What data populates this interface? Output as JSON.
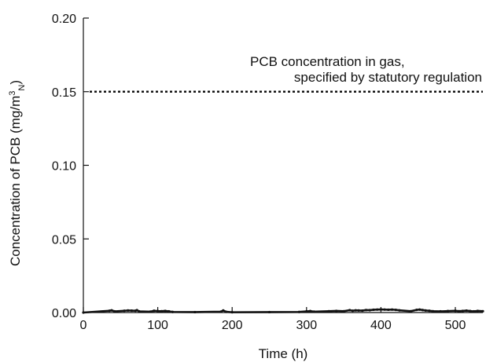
{
  "chart_data": {
    "type": "line",
    "title": "",
    "xlabel": "Time (h)",
    "ylabel": "Concentration of PCB (mg/m3N)",
    "ylabel_parts": {
      "main": "Concentration of PCB (mg/m",
      "sup": "3",
      "sub": "N",
      "close": ")"
    },
    "xlim": [
      0,
      537
    ],
    "ylim": [
      0,
      0.2
    ],
    "x_ticks": [
      0,
      100,
      200,
      300,
      400,
      500
    ],
    "x_tick_labels": [
      "0",
      "100",
      "200",
      "300",
      "400",
      "500"
    ],
    "y_ticks": [
      0,
      0.05,
      0.1,
      0.15,
      0.2
    ],
    "y_tick_labels": [
      "0.00",
      "0.05",
      "0.10",
      "0.15",
      "0.20"
    ],
    "grid": false,
    "reference_line": {
      "y": 0.15,
      "style": "dotted",
      "label_lines": [
        "PCB concentration in gas,",
        "specified by statutory regulation"
      ]
    },
    "series": [
      {
        "color": "#111111",
        "x": [
          0,
          35,
          38,
          42,
          55,
          60,
          65,
          70,
          72,
          75,
          90,
          95,
          100,
          105,
          110,
          115,
          120,
          150,
          185,
          188,
          192,
          200,
          250,
          290,
          300,
          305,
          310,
          330,
          340,
          350,
          358,
          362,
          366,
          370,
          375,
          380,
          385,
          390,
          395,
          400,
          405,
          410,
          415,
          420,
          425,
          440,
          448,
          452,
          456,
          460,
          465,
          470,
          480,
          490,
          500,
          505,
          510,
          515,
          520,
          525,
          530,
          537
        ],
        "y": [
          0.0,
          0.0012,
          0.0015,
          0.0008,
          0.0012,
          0.0014,
          0.0013,
          0.0012,
          0.0016,
          0.0008,
          0.0006,
          0.0012,
          0.001,
          0.0009,
          0.0011,
          0.0008,
          0.0004,
          0.0003,
          0.0006,
          0.0014,
          0.0005,
          0.0002,
          0.0003,
          0.0004,
          0.0008,
          0.001,
          0.0006,
          0.0009,
          0.0011,
          0.0009,
          0.0016,
          0.0012,
          0.0015,
          0.0014,
          0.0013,
          0.0017,
          0.0016,
          0.0019,
          0.002,
          0.0021,
          0.002,
          0.0019,
          0.002,
          0.0018,
          0.0015,
          0.0009,
          0.0018,
          0.002,
          0.0017,
          0.0014,
          0.0012,
          0.0009,
          0.0008,
          0.001,
          0.0012,
          0.0009,
          0.0011,
          0.0013,
          0.001,
          0.0008,
          0.0011,
          0.0009
        ]
      }
    ]
  }
}
